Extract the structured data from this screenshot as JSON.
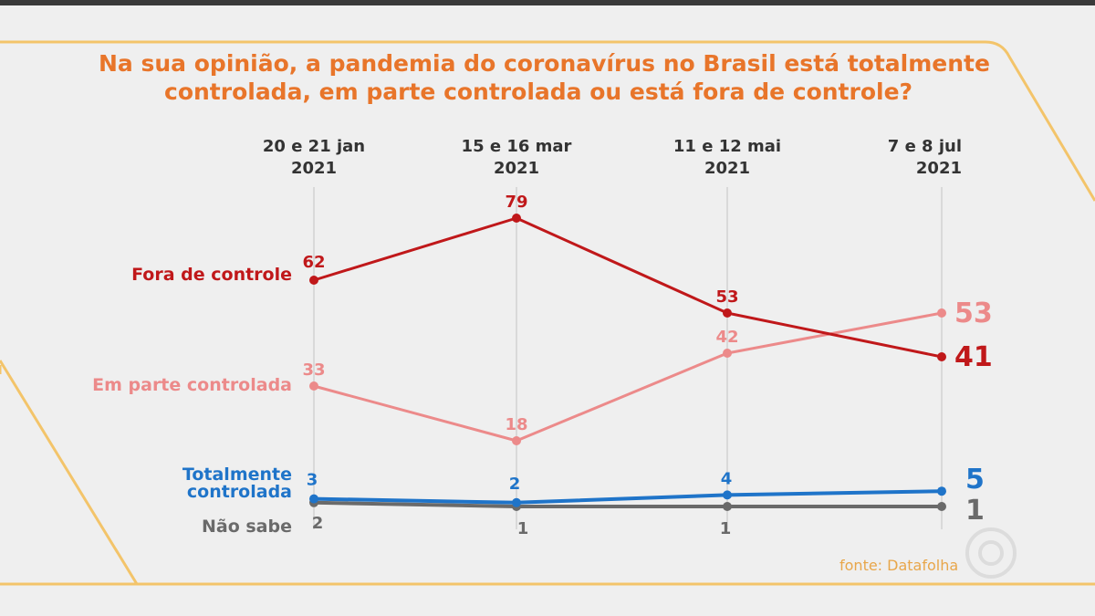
{
  "colors": {
    "background": "#efefef",
    "frame": "#f3c46a",
    "title": "#e8752a",
    "fora_de_controle": "#c0181a",
    "em_parte_controlada": "#ec8a8a",
    "totalmente_controlada": "#1f74c9",
    "nao_sabe": "#6a6a6a",
    "source": "#e8a64a"
  },
  "source_text": "fonte: Datafolha",
  "chart_data": {
    "type": "line",
    "title_lines": [
      "Na sua opinião, a pandemia do coronavírus no Brasil está totalmente",
      "controlada, em parte controlada ou está fora de controle?"
    ],
    "categories": [
      {
        "line1": "20 e 21 jan",
        "line2": "2021"
      },
      {
        "line1": "15 e 16 mar",
        "line2": "2021"
      },
      {
        "line1": "11 e 12 mai",
        "line2": "2021"
      },
      {
        "line1": "7 e 8 jul",
        "line2": "2021"
      }
    ],
    "ylim": [
      0,
      85
    ],
    "grid": "vertical",
    "series": [
      {
        "key": "fora",
        "name_lines": [
          "Fora de controle"
        ],
        "values": [
          62,
          79,
          53,
          41
        ],
        "color": "#c0181a"
      },
      {
        "key": "parte",
        "name_lines": [
          "Em parte controlada"
        ],
        "values": [
          33,
          18,
          42,
          53
        ],
        "color": "#ec8a8a"
      },
      {
        "key": "total",
        "name_lines": [
          "Totalmente",
          "controlada"
        ],
        "values": [
          3,
          2,
          4,
          5
        ],
        "color": "#1f74c9"
      },
      {
        "key": "naosabe",
        "name_lines": [
          "Não sabe"
        ],
        "values": [
          2,
          1,
          1,
          1
        ],
        "color": "#6a6a6a"
      }
    ]
  }
}
